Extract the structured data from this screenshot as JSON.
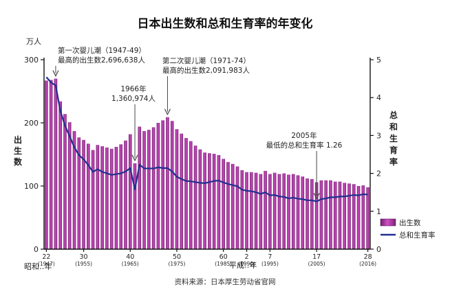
{
  "chart_data": {
    "type": "bar",
    "title": "日本出生数和总和生育率的年变化",
    "left_unit": "万人",
    "left_axis_label": "出生数",
    "right_axis_label": "总和生育率",
    "ylim_left": [
      0,
      300
    ],
    "ylim_right": [
      0,
      5
    ],
    "left_ticks": [
      "0",
      "100",
      "200",
      "300"
    ],
    "right_ticks": [
      "0",
      "1",
      "2",
      "3",
      "4",
      "5"
    ],
    "years": [
      1947,
      1948,
      1949,
      1950,
      1951,
      1952,
      1953,
      1954,
      1955,
      1956,
      1957,
      1958,
      1959,
      1960,
      1961,
      1962,
      1963,
      1964,
      1965,
      1966,
      1967,
      1968,
      1969,
      1970,
      1971,
      1972,
      1973,
      1974,
      1975,
      1976,
      1977,
      1978,
      1979,
      1980,
      1981,
      1982,
      1983,
      1984,
      1985,
      1986,
      1987,
      1988,
      1989,
      1990,
      1991,
      1992,
      1993,
      1994,
      1995,
      1996,
      1997,
      1998,
      1999,
      2000,
      2001,
      2002,
      2003,
      2004,
      2005,
      2006,
      2007,
      2008,
      2009,
      2010,
      2011,
      2012,
      2013,
      2014,
      2015,
      2016
    ],
    "series": [
      {
        "name": "出生数",
        "color": "#b03aa8",
        "values": [
          267,
          268,
          270,
          234,
          214,
          201,
          187,
          177,
          173,
          167,
          157,
          165,
          163,
          161,
          159,
          162,
          166,
          172,
          182,
          136,
          194,
          187,
          189,
          193,
          200,
          204,
          209,
          203,
          190,
          183,
          176,
          171,
          164,
          158,
          153,
          152,
          151,
          149,
          143,
          138,
          135,
          131,
          125,
          122,
          122,
          121,
          119,
          124,
          119,
          121,
          119,
          120,
          118,
          119,
          117,
          115,
          112,
          111,
          106,
          109,
          109,
          109,
          107,
          107,
          105,
          104,
          103,
          100,
          101,
          98
        ]
      },
      {
        "name": "总和生育率",
        "color": "#1f2f8f",
        "values": [
          4.54,
          4.4,
          4.32,
          3.65,
          3.26,
          2.98,
          2.69,
          2.48,
          2.37,
          2.22,
          2.04,
          2.11,
          2.04,
          2.0,
          1.96,
          1.98,
          2.0,
          2.05,
          2.14,
          1.58,
          2.23,
          2.13,
          2.13,
          2.13,
          2.16,
          2.14,
          2.14,
          2.05,
          1.91,
          1.85,
          1.8,
          1.79,
          1.77,
          1.75,
          1.74,
          1.77,
          1.8,
          1.81,
          1.76,
          1.72,
          1.69,
          1.66,
          1.57,
          1.54,
          1.53,
          1.5,
          1.46,
          1.5,
          1.42,
          1.43,
          1.39,
          1.38,
          1.34,
          1.36,
          1.33,
          1.32,
          1.29,
          1.29,
          1.26,
          1.32,
          1.34,
          1.37,
          1.37,
          1.39,
          1.39,
          1.41,
          1.43,
          1.42,
          1.45,
          1.44
        ]
      }
    ],
    "x_ticks": [
      {
        "year": 1947,
        "top": "22",
        "bottom": "(1947)"
      },
      {
        "year": 1955,
        "top": "30",
        "bottom": "(1955)"
      },
      {
        "year": 1965,
        "top": "40",
        "bottom": "(1965)"
      },
      {
        "year": 1975,
        "top": "50",
        "bottom": "(1975)"
      },
      {
        "year": 1985,
        "top": "60",
        "bottom": "(1985)"
      },
      {
        "year": 1990,
        "top": "2",
        "bottom": "(1990)"
      },
      {
        "year": 1995,
        "top": "7",
        "bottom": "(1995)"
      },
      {
        "year": 2005,
        "top": "17",
        "bottom": "(2005)"
      },
      {
        "year": 2016,
        "top": "28",
        "bottom": "(2016)"
      }
    ],
    "era_label_showa": "昭和‥年",
    "era_label_heisei": "平成‥年",
    "annotations": [
      {
        "lines": [
          "第一次婴儿潮（1947-49）",
          "最高的出生数2,696,638人"
        ],
        "year": 1949
      },
      {
        "lines": [
          "1966年",
          "1,360,974人"
        ],
        "year": 1966
      },
      {
        "lines": [
          "第二次婴儿潮（1971-74）",
          "最高的出生数2,091,983人"
        ],
        "year": 1973
      },
      {
        "lines": [
          "2005年",
          "最低的总和生育率 1.26"
        ],
        "year": 2005
      }
    ],
    "legend": [
      {
        "label": "出生数",
        "kind": "bar",
        "color": "#b03aa8"
      },
      {
        "label": "总和生育率",
        "kind": "line",
        "color": "#1f2f8f"
      }
    ],
    "source": "资料来源：日本厚生劳动省官网"
  }
}
